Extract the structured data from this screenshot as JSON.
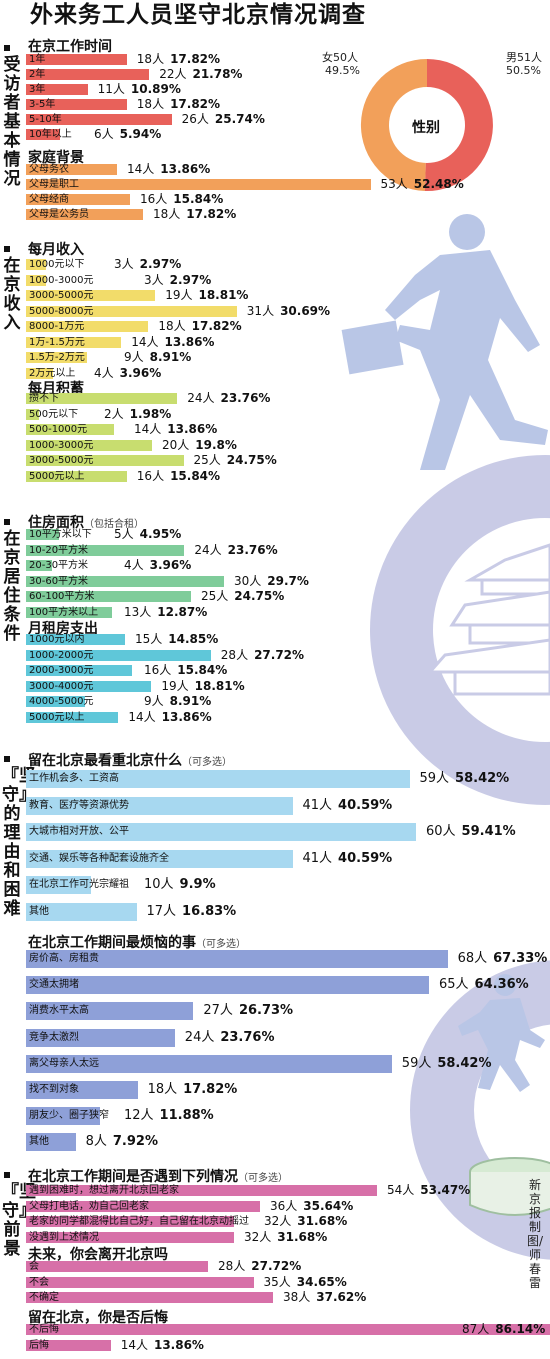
{
  "title": "外来务工人员坚守北京情况调查",
  "credit": "新京报制图/师春雷",
  "sections": [
    {
      "label": "受访者基本情况"
    },
    {
      "label": "在京收入"
    },
    {
      "label": "在京居住条件"
    },
    {
      "label": "『坚守』的理由和困难"
    },
    {
      "label": "『坚守』前景"
    }
  ],
  "colors": {
    "red": "#e8615a",
    "orange": "#f2a05a",
    "yellow": "#f2dc6a",
    "lime": "#c8dd6f",
    "green": "#7fcc9a",
    "cyan": "#5fc7d9",
    "sky": "#a7d8f0",
    "blue": "#8ea0d8",
    "magenta": "#d770a8",
    "gear": "#c9cbe6",
    "figure": "#b9c6e6"
  },
  "pie": {
    "title": "性别",
    "female_label": "女50人",
    "female_pct": "49.5%",
    "male_label": "男51人",
    "male_pct": "50.5%"
  },
  "chart_data": [
    {
      "type": "bar",
      "title": "在京工作时间",
      "categories": [
        "1年",
        "2年",
        "3年",
        "3-5年",
        "5-10年",
        "10年以上"
      ],
      "series": [
        {
          "values": [
            18,
            22,
            11,
            18,
            26,
            6
          ]
        }
      ],
      "percent": [
        "17.82%",
        "21.78%",
        "10.89%",
        "17.82%",
        "25.74%",
        "5.94%"
      ]
    },
    {
      "type": "pie",
      "title": "性别",
      "categories": [
        "女",
        "男"
      ],
      "values": [
        50,
        51
      ],
      "percent": [
        "49.5%",
        "50.5%"
      ]
    },
    {
      "type": "bar",
      "title": "家庭背景",
      "categories": [
        "父母务农",
        "父母是职工",
        "父母经商",
        "父母是公务员"
      ],
      "series": [
        {
          "values": [
            14,
            53,
            16,
            18
          ]
        }
      ],
      "percent": [
        "13.86%",
        "52.48%",
        "15.84%",
        "17.82%"
      ]
    },
    {
      "type": "bar",
      "title": "每月收入",
      "categories": [
        "1000元以下",
        "1000-3000元",
        "3000-5000元",
        "5000-8000元",
        "8000-1万元",
        "1万-1.5万元",
        "1.5万-2万元",
        "2万元以上"
      ],
      "series": [
        {
          "values": [
            3,
            3,
            19,
            31,
            18,
            14,
            9,
            4
          ]
        }
      ],
      "percent": [
        "2.97%",
        "2.97%",
        "18.81%",
        "30.69%",
        "17.82%",
        "13.86%",
        "8.91%",
        "3.96%"
      ]
    },
    {
      "type": "bar",
      "title": "每月积蓄",
      "categories": [
        "攒不下",
        "500元以下",
        "500-1000元",
        "1000-3000元",
        "3000-5000元",
        "5000元以上"
      ],
      "series": [
        {
          "values": [
            24,
            2,
            14,
            20,
            25,
            16
          ]
        }
      ],
      "percent": [
        "23.76%",
        "1.98%",
        "13.86%",
        "19.8%",
        "24.75%",
        "15.84%"
      ]
    },
    {
      "type": "bar",
      "title": "住房面积",
      "categories": [
        "10平方米以下",
        "10-20平方米",
        "20-30平方米",
        "30-60平方米",
        "60-100平方米",
        "100平方米以上"
      ],
      "series": [
        {
          "values": [
            5,
            24,
            4,
            30,
            25,
            13
          ]
        }
      ],
      "percent": [
        "4.95%",
        "23.76%",
        "3.96%",
        "29.7%",
        "24.75%",
        "12.87%"
      ]
    },
    {
      "type": "bar",
      "title": "月租房支出",
      "categories": [
        "1000元以内",
        "1000-2000元",
        "2000-3000元",
        "3000-4000元",
        "4000-5000元",
        "5000元以上"
      ],
      "series": [
        {
          "values": [
            15,
            28,
            16,
            19,
            9,
            14
          ]
        }
      ],
      "percent": [
        "14.85%",
        "27.72%",
        "15.84%",
        "18.81%",
        "8.91%",
        "13.86%"
      ]
    },
    {
      "type": "bar",
      "title": "留在北京最看重北京什么",
      "categories": [
        "工作机会多、工资高",
        "教育、医疗等资源优势",
        "大城市相对开放、公平",
        "交通、娱乐等各种配套设施齐全",
        "在北京工作可光宗耀祖",
        "其他"
      ],
      "series": [
        {
          "values": [
            59,
            41,
            60,
            41,
            10,
            17
          ]
        }
      ],
      "percent": [
        "58.42%",
        "40.59%",
        "59.41%",
        "40.59%",
        "9.9%",
        "16.83%"
      ]
    },
    {
      "type": "bar",
      "title": "在北京工作期间最烦恼的事",
      "categories": [
        "房价高、房租贵",
        "交通太拥堵",
        "消费水平太高",
        "竞争太激烈",
        "离父母亲人太远",
        "找不到对象",
        "朋友少、圈子狭窄",
        "其他"
      ],
      "series": [
        {
          "values": [
            68,
            65,
            27,
            24,
            59,
            18,
            12,
            8
          ]
        }
      ],
      "percent": [
        "67.33%",
        "64.36%",
        "26.73%",
        "23.76%",
        "58.42%",
        "17.82%",
        "11.88%",
        "7.92%"
      ]
    },
    {
      "type": "bar",
      "title": "在北京工作期间是否遇到下列情况",
      "categories": [
        "遇到困难时，想过离开北京回老家",
        "父母打电话，劝自己回老家",
        "老家的同学都混得比自己好，自己留在北京动摇过",
        "没遇到上述情况"
      ],
      "series": [
        {
          "values": [
            54,
            36,
            32,
            32
          ]
        }
      ],
      "percent": [
        "53.47%",
        "35.64%",
        "31.68%",
        "31.68%"
      ]
    },
    {
      "type": "bar",
      "title": "未来，你会离开北京吗",
      "categories": [
        "会",
        "不会",
        "不确定"
      ],
      "series": [
        {
          "values": [
            28,
            35,
            38
          ]
        }
      ],
      "percent": [
        "27.72%",
        "34.65%",
        "37.62%"
      ]
    },
    {
      "type": "bar",
      "title": "留在北京，你是否后悔",
      "categories": [
        "不后悔",
        "后悔"
      ],
      "series": [
        {
          "values": [
            87,
            14
          ]
        }
      ],
      "percent": [
        "86.14%",
        "13.86%"
      ]
    }
  ],
  "groups": [
    {
      "title": "在京工作时间",
      "note": "",
      "top": 36,
      "bar_top": 54,
      "row_h": 15,
      "bar_h": 11,
      "scale": 5.6,
      "start": 26,
      "color": "red",
      "value_style": "plain",
      "items": [
        {
          "label": "1年",
          "count": "18人",
          "pct": "17.82%",
          "value": 18
        },
        {
          "label": "2年",
          "count": "22人",
          "pct": "21.78%",
          "value": 22
        },
        {
          "label": "3年",
          "count": "11人",
          "pct": "10.89%",
          "value": 11
        },
        {
          "label": "3-5年",
          "count": "18人",
          "pct": "17.82%",
          "value": 18
        },
        {
          "label": "5-10年",
          "count": "26人",
          "pct": "25.74%",
          "value": 26
        },
        {
          "label": "10年以上",
          "count": "6人",
          "pct": "5.94%",
          "value": 6
        }
      ]
    },
    {
      "title": "家庭背景",
      "note": "",
      "top": 147,
      "bar_top": 164,
      "row_h": 15,
      "bar_h": 11,
      "scale": 6.5,
      "start": 26,
      "color": "orange",
      "value_style": "plain",
      "items": [
        {
          "label": "父母务农",
          "count": "14人",
          "pct": "13.86%",
          "value": 14
        },
        {
          "label": "父母是职工",
          "count": "53人",
          "pct": "52.48%",
          "value": 53
        },
        {
          "label": "父母经商",
          "count": "16人",
          "pct": "15.84%",
          "value": 16
        },
        {
          "label": "父母是公务员",
          "count": "18人",
          "pct": "17.82%",
          "value": 18
        }
      ]
    },
    {
      "title": "每月收入",
      "note": "",
      "top": 239,
      "bar_top": 259,
      "row_h": 15.5,
      "bar_h": 11,
      "scale": 6.8,
      "start": 26,
      "color": "yellow",
      "value_style": "plain",
      "items": [
        {
          "label": "1000元以下",
          "count": "3人",
          "pct": "2.97%",
          "value": 3
        },
        {
          "label": "1000-3000元",
          "count": "3人",
          "pct": "2.97%",
          "value": 3
        },
        {
          "label": "3000-5000元",
          "count": "19人",
          "pct": "18.81%",
          "value": 19
        },
        {
          "label": "5000-8000元",
          "count": "31人",
          "pct": "30.69%",
          "value": 31
        },
        {
          "label": "8000-1万元",
          "count": "18人",
          "pct": "17.82%",
          "value": 18
        },
        {
          "label": "1万-1.5万元",
          "count": "14人",
          "pct": "13.86%",
          "value": 14
        },
        {
          "label": "1.5万-2万元",
          "count": "9人",
          "pct": "8.91%",
          "value": 9
        },
        {
          "label": "2万元以上",
          "count": "4人",
          "pct": "3.96%",
          "value": 4
        }
      ]
    },
    {
      "title": "每月积蓄",
      "note": "",
      "top": 378,
      "bar_top": 393,
      "row_h": 15.5,
      "bar_h": 11,
      "scale": 6.3,
      "start": 26,
      "color": "lime",
      "value_style": "plain",
      "items": [
        {
          "label": "攒不下",
          "count": "24人",
          "pct": "23.76%",
          "value": 24
        },
        {
          "label": "500元以下",
          "count": "2人",
          "pct": "1.98%",
          "value": 2
        },
        {
          "label": "500-1000元",
          "count": "14人",
          "pct": "13.86%",
          "value": 14
        },
        {
          "label": "1000-3000元",
          "count": "20人",
          "pct": "19.8%",
          "value": 20
        },
        {
          "label": "3000-5000元",
          "count": "25人",
          "pct": "24.75%",
          "value": 25
        },
        {
          "label": "5000元以上",
          "count": "16人",
          "pct": "15.84%",
          "value": 16
        }
      ]
    },
    {
      "title": "住房面积",
      "note": "（包括合租）",
      "top": 512,
      "bar_top": 529,
      "row_h": 15.5,
      "bar_h": 11,
      "scale": 6.6,
      "start": 26,
      "color": "green",
      "value_style": "plain",
      "items": [
        {
          "label": "10平方米以下",
          "count": "5人",
          "pct": "4.95%",
          "value": 5
        },
        {
          "label": "10-20平方米",
          "count": "24人",
          "pct": "23.76%",
          "value": 24
        },
        {
          "label": "20-30平方米",
          "count": "4人",
          "pct": "3.96%",
          "value": 4
        },
        {
          "label": "30-60平方米",
          "count": "30人",
          "pct": "29.7%",
          "value": 30
        },
        {
          "label": "60-100平方米",
          "count": "25人",
          "pct": "24.75%",
          "value": 25
        },
        {
          "label": "100平方米以上",
          "count": "13人",
          "pct": "12.87%",
          "value": 13
        }
      ]
    },
    {
      "title": "月租房支出",
      "note": "",
      "top": 618,
      "bar_top": 634,
      "row_h": 15.5,
      "bar_h": 11,
      "scale": 6.6,
      "start": 26,
      "color": "cyan",
      "value_style": "plain",
      "items": [
        {
          "label": "1000元以内",
          "count": "15人",
          "pct": "14.85%",
          "value": 15
        },
        {
          "label": "1000-2000元",
          "count": "28人",
          "pct": "27.72%",
          "value": 28
        },
        {
          "label": "2000-3000元",
          "count": "16人",
          "pct": "15.84%",
          "value": 16
        },
        {
          "label": "3000-4000元",
          "count": "19人",
          "pct": "18.81%",
          "value": 19
        },
        {
          "label": "4000-5000元",
          "count": "9人",
          "pct": "8.91%",
          "value": 9
        },
        {
          "label": "5000元以上",
          "count": "14人",
          "pct": "13.86%",
          "value": 14
        }
      ]
    },
    {
      "title": "留在北京最看重北京什么",
      "note": "（可多选）",
      "top": 750,
      "bar_top": 770,
      "row_h": 26.5,
      "bar_h": 18,
      "scale": 6.5,
      "start": 26,
      "color": "sky",
      "value_style": "big",
      "items": [
        {
          "label": "工作机会多、工资高",
          "count": "59人",
          "pct": "58.42%",
          "value": 59
        },
        {
          "label": "教育、医疗等资源优势",
          "count": "41人",
          "pct": "40.59%",
          "value": 41
        },
        {
          "label": "大城市相对开放、公平",
          "count": "60人",
          "pct": "59.41%",
          "value": 60
        },
        {
          "label": "交通、娱乐等各种配套设施齐全",
          "count": "41人",
          "pct": "40.59%",
          "value": 41
        },
        {
          "label": "在北京工作可光宗耀祖",
          "count": "10人",
          "pct": "9.9%",
          "value": 10
        },
        {
          "label": "其他",
          "count": "17人",
          "pct": "16.83%",
          "value": 17
        }
      ]
    },
    {
      "title": "在北京工作期间最烦恼的事",
      "note": "（可多选）",
      "top": 932,
      "bar_top": 950,
      "row_h": 26.2,
      "bar_h": 18,
      "scale": 6.2,
      "start": 26,
      "color": "blue",
      "value_style": "big",
      "items": [
        {
          "label": "房价高、房租贵",
          "count": "68人",
          "pct": "67.33%",
          "value": 68
        },
        {
          "label": "交通太拥堵",
          "count": "65人",
          "pct": "64.36%",
          "value": 65
        },
        {
          "label": "消费水平太高",
          "count": "27人",
          "pct": "26.73%",
          "value": 27
        },
        {
          "label": "竞争太激烈",
          "count": "24人",
          "pct": "23.76%",
          "value": 24
        },
        {
          "label": "离父母亲人太远",
          "count": "59人",
          "pct": "58.42%",
          "value": 59
        },
        {
          "label": "找不到对象",
          "count": "18人",
          "pct": "17.82%",
          "value": 18
        },
        {
          "label": "朋友少、圈子狭窄",
          "count": "12人",
          "pct": "11.88%",
          "value": 12
        },
        {
          "label": "其他",
          "count": "8人",
          "pct": "7.92%",
          "value": 8
        }
      ]
    },
    {
      "title": "在北京工作期间是否遇到下列情况",
      "note": "（可多选）",
      "top": 1166,
      "bar_top": 1185,
      "row_h": 15.5,
      "bar_h": 11,
      "scale": 6.5,
      "start": 26,
      "color": "magenta",
      "value_style": "plain",
      "items": [
        {
          "label": "遇到困难时，想过离开北京回老家",
          "count": "54人",
          "pct": "53.47%",
          "value": 54
        },
        {
          "label": "父母打电话，劝自己回老家",
          "count": "36人",
          "pct": "35.64%",
          "value": 36
        },
        {
          "label": "老家的同学都混得比自己好，自己留在北京动摇过",
          "count": "32人",
          "pct": "31.68%",
          "value": 32
        },
        {
          "label": "没遇到上述情况",
          "count": "32人",
          "pct": "31.68%",
          "value": 32
        }
      ]
    },
    {
      "title": "未来，你会离开北京吗",
      "note": "",
      "top": 1244,
      "bar_top": 1261,
      "row_h": 15.5,
      "bar_h": 11,
      "scale": 6.5,
      "start": 26,
      "color": "magenta",
      "value_style": "plain",
      "items": [
        {
          "label": "会",
          "count": "28人",
          "pct": "27.72%",
          "value": 28
        },
        {
          "label": "不会",
          "count": "35人",
          "pct": "34.65%",
          "value": 35
        },
        {
          "label": "不确定",
          "count": "38人",
          "pct": "37.62%",
          "value": 38
        }
      ]
    },
    {
      "title": "留在北京，你是否后悔",
      "note": "",
      "top": 1307,
      "bar_top": 1324,
      "row_h": 15.5,
      "bar_h": 11,
      "scale": 6.05,
      "start": 26,
      "color": "magenta",
      "value_style": "plain",
      "items": [
        {
          "label": "不后悔",
          "count": "87人",
          "pct": "86.14%",
          "value": 87
        },
        {
          "label": "后悔",
          "count": "14人",
          "pct": "13.86%",
          "value": 14
        }
      ]
    }
  ]
}
